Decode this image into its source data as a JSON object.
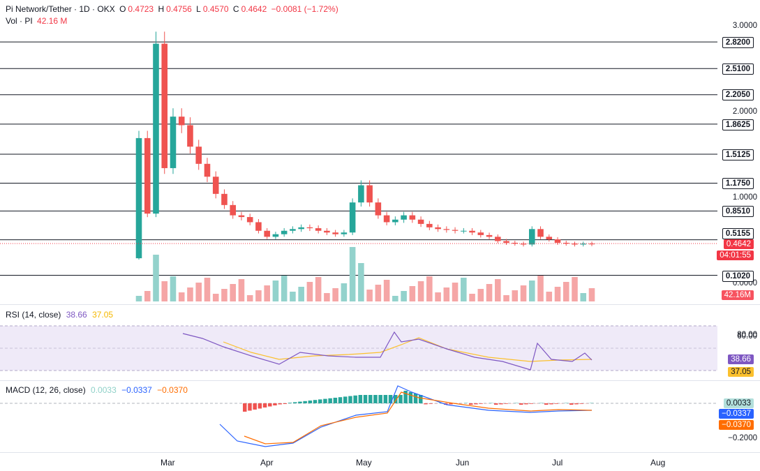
{
  "header": {
    "symbol": "Pi Network/Tether · 1D · OKX",
    "open_label": "O",
    "open": "0.4723",
    "high_label": "H",
    "high": "0.4756",
    "low_label": "L",
    "low": "0.4570",
    "close_label": "C",
    "close": "0.4642",
    "change": "−0.0081 (−1.72%)",
    "vol_label": "Vol · PI",
    "vol_value": "42.16 M"
  },
  "price_axis": {
    "ticks": [
      "3.0000",
      "2.0000",
      "1.0000",
      "0.0000"
    ],
    "levels": [
      "2.8200",
      "2.5100",
      "2.2050",
      "1.8625",
      "1.5125",
      "1.1750",
      "0.8510",
      "0.5155",
      "0.1020"
    ],
    "last_price": "0.4642",
    "countdown": "04:01:55",
    "volume_tag": "42.16M"
  },
  "rsi": {
    "title": "RSI (14, close)",
    "value": "38.66",
    "ma_value": "37.05",
    "ticks": [
      "80.00",
      "60.00"
    ]
  },
  "macd": {
    "title": "MACD (12, 26, close)",
    "hist": "0.0033",
    "macd": "−0.0337",
    "signal": "−0.0370",
    "ticks": [
      "−0.2000"
    ]
  },
  "time_axis": [
    "Mar",
    "Apr",
    "May",
    "Jun",
    "Jul",
    "Aug"
  ],
  "colors": {
    "up": "#26a69a",
    "down": "#ef5350",
    "rsi": "#7e57c2",
    "rsi_ma": "#fbc02d",
    "macd": "#2962ff",
    "signal": "#ff6d00",
    "level": "#131722",
    "rsi_band": "#efeaf8"
  },
  "chart_data": {
    "type": "candlestick",
    "title": "Pi Network/Tether · 1D · OKX",
    "ylim": [
      0,
      3.0
    ],
    "horizontal_levels": [
      2.82,
      2.51,
      2.205,
      1.8625,
      1.5125,
      1.175,
      0.851,
      0.5155,
      0.102
    ],
    "x_ticks": [
      "Mar",
      "Apr",
      "May",
      "Jun",
      "Jul",
      "Aug"
    ],
    "series": [
      {
        "name": "close",
        "values": [
          1.7,
          0.82,
          2.8,
          1.35,
          1.95,
          1.85,
          1.6,
          1.4,
          1.25,
          1.05,
          0.92,
          0.8,
          0.78,
          0.72,
          0.62,
          0.55,
          0.58,
          0.62,
          0.64,
          0.66,
          0.65,
          0.62,
          0.6,
          0.58,
          0.6,
          0.95,
          1.15,
          0.95,
          0.8,
          0.72,
          0.75,
          0.8,
          0.75,
          0.7,
          0.66,
          0.64,
          0.63,
          0.62,
          0.62,
          0.6,
          0.57,
          0.55,
          0.5,
          0.48,
          0.47,
          0.46,
          0.64,
          0.55,
          0.52,
          0.48,
          0.47,
          0.46,
          0.47,
          0.4642
        ]
      }
    ],
    "rsi_last": 38.66,
    "rsi_ma_last": 37.05,
    "macd_last": {
      "hist": 0.0033,
      "macd": -0.0337,
      "signal": -0.037
    }
  }
}
